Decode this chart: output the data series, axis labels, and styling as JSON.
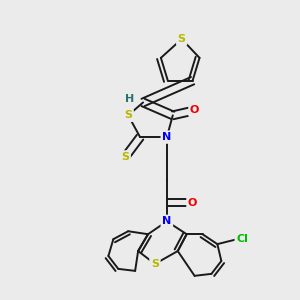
{
  "background_color": "#ebebeb",
  "bond_color": "#1a1a1a",
  "atom_colors": {
    "S": "#b8b800",
    "N": "#0000ee",
    "O": "#ee0000",
    "Cl": "#00bb00",
    "H": "#2a7070",
    "C": "#1a1a1a"
  },
  "line_width": 1.4,
  "figsize": [
    3.0,
    3.0
  ],
  "dpi": 100
}
